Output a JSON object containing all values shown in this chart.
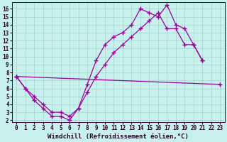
{
  "bg_color": "#c8f0ec",
  "grid_color": "#a0d4d0",
  "line_color": "#990099",
  "marker": "+",
  "markersize": 4,
  "linewidth": 0.9,
  "xlabel": "Windchill (Refroidissement éolien,°C)",
  "xlabel_fontsize": 6.5,
  "tick_fontsize": 5.5,
  "xlim": [
    -0.5,
    23.5
  ],
  "ylim": [
    1.8,
    16.8
  ],
  "xticks": [
    0,
    1,
    2,
    3,
    4,
    5,
    6,
    7,
    8,
    9,
    10,
    11,
    12,
    13,
    14,
    15,
    16,
    17,
    18,
    19,
    20,
    21,
    22,
    23
  ],
  "yticks": [
    2,
    3,
    4,
    5,
    6,
    7,
    8,
    9,
    10,
    11,
    12,
    13,
    14,
    15,
    16
  ],
  "line1": {
    "x": [
      0,
      1,
      2,
      3,
      4,
      5,
      6,
      7,
      8,
      9,
      10,
      11,
      12,
      13,
      14,
      15,
      16,
      17,
      18,
      19,
      20,
      21
    ],
    "y": [
      7.5,
      6.0,
      4.5,
      3.5,
      2.5,
      2.5,
      2.0,
      3.5,
      6.5,
      9.5,
      11.5,
      12.5,
      13.0,
      14.0,
      16.0,
      15.5,
      15.0,
      16.5,
      14.0,
      13.5,
      11.5,
      9.5
    ]
  },
  "line2": {
    "x": [
      0,
      1,
      2,
      3,
      4,
      5,
      6,
      7,
      8,
      9,
      10,
      11,
      12,
      13,
      14,
      15,
      16,
      17,
      18,
      19,
      20,
      21
    ],
    "y": [
      7.5,
      6.0,
      5.0,
      4.0,
      3.0,
      3.0,
      2.5,
      3.5,
      5.5,
      7.5,
      9.0,
      10.5,
      11.5,
      12.5,
      13.5,
      14.5,
      15.5,
      13.5,
      13.5,
      11.5,
      11.5,
      9.5
    ]
  },
  "line3": {
    "x": [
      0,
      23
    ],
    "y": [
      7.5,
      6.5
    ]
  }
}
